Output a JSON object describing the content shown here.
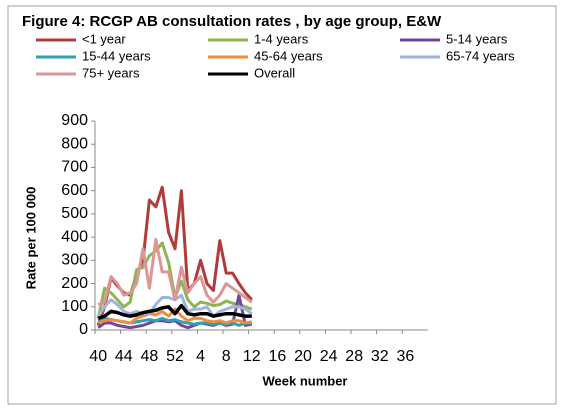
{
  "chart_data": {
    "type": "line",
    "title": "Figure 4: RCGP AB consultation rates , by age group, E&W",
    "x_label": "Week number",
    "y_label": "Rate per 100 000",
    "categories": [
      "40",
      null,
      null,
      null,
      "44",
      null,
      null,
      null,
      "48",
      null,
      null,
      null,
      "52",
      null,
      null,
      null,
      "4",
      null,
      null,
      null,
      "8",
      null,
      null,
      null,
      "12",
      null,
      null,
      null,
      "16",
      null,
      null,
      null,
      "20",
      null,
      null,
      null,
      "24",
      null,
      null,
      null,
      "28",
      null,
      null,
      null,
      "32",
      null,
      null,
      null,
      "36",
      null,
      null,
      null
    ],
    "ylim": [
      0,
      900
    ],
    "yticks": [
      0,
      100,
      200,
      300,
      400,
      500,
      600,
      700,
      800,
      900
    ],
    "grid": false,
    "legend": "top",
    "series": [
      {
        "name": "<1 year",
        "color": "#b03c3a",
        "values": [
          20,
          100,
          225,
          190,
          160,
          150,
          240,
          300,
          560,
          530,
          615,
          420,
          350,
          600,
          170,
          200,
          300,
          200,
          170,
          385,
          245,
          245,
          200,
          160,
          130,
          null,
          null,
          null,
          null,
          null,
          null,
          null,
          null,
          null,
          null,
          null,
          null,
          null,
          null,
          null,
          null,
          null,
          null,
          null,
          null,
          null,
          null,
          null,
          null,
          null,
          null,
          null
        ]
      },
      {
        "name": "1-4 years",
        "color": "#8db552",
        "values": [
          50,
          180,
          160,
          130,
          100,
          120,
          260,
          270,
          320,
          340,
          375,
          290,
          140,
          210,
          130,
          100,
          120,
          115,
          105,
          110,
          125,
          115,
          110,
          100,
          90,
          null,
          null,
          null,
          null,
          null,
          null,
          null,
          null,
          null,
          null,
          null,
          null,
          null,
          null,
          null,
          null,
          null,
          null,
          null,
          null,
          null,
          null,
          null,
          null,
          null,
          null,
          null
        ]
      },
      {
        "name": "5-14 years",
        "color": "#70489a",
        "values": [
          10,
          30,
          30,
          20,
          15,
          10,
          15,
          20,
          30,
          40,
          40,
          35,
          40,
          20,
          10,
          20,
          30,
          25,
          20,
          30,
          20,
          25,
          150,
          20,
          25,
          null,
          null,
          null,
          null,
          null,
          null,
          null,
          null,
          null,
          null,
          null,
          null,
          null,
          null,
          null,
          null,
          null,
          null,
          null,
          null,
          null,
          null,
          null,
          null,
          null,
          null,
          null
        ]
      },
      {
        "name": "15-44 years",
        "color": "#2f9fb5",
        "values": [
          40,
          50,
          45,
          40,
          35,
          30,
          35,
          40,
          45,
          40,
          50,
          40,
          45,
          35,
          30,
          25,
          30,
          30,
          25,
          30,
          25,
          30,
          20,
          30,
          30,
          null,
          null,
          null,
          null,
          null,
          null,
          null,
          null,
          null,
          null,
          null,
          null,
          null,
          null,
          null,
          null,
          null,
          null,
          null,
          null,
          null,
          null,
          null,
          null,
          null,
          null,
          null
        ]
      },
      {
        "name": "45-64 years",
        "color": "#f08c3a",
        "values": [
          30,
          40,
          45,
          40,
          35,
          30,
          50,
          60,
          70,
          65,
          80,
          60,
          90,
          60,
          40,
          50,
          50,
          40,
          35,
          40,
          30,
          40,
          40,
          30,
          35,
          null,
          null,
          null,
          null,
          null,
          null,
          null,
          null,
          null,
          null,
          null,
          null,
          null,
          null,
          null,
          null,
          null,
          null,
          null,
          null,
          null,
          null,
          null,
          null,
          null,
          null,
          null
        ]
      },
      {
        "name": "65-74 years",
        "color": "#9fb3dc",
        "values": [
          60,
          100,
          130,
          110,
          80,
          70,
          80,
          70,
          70,
          110,
          140,
          140,
          130,
          150,
          80,
          90,
          90,
          100,
          60,
          80,
          90,
          100,
          100,
          90,
          70,
          null,
          null,
          null,
          null,
          null,
          null,
          null,
          null,
          null,
          null,
          null,
          null,
          null,
          null,
          null,
          null,
          null,
          null,
          null,
          null,
          null,
          null,
          null,
          null,
          null,
          null,
          null
        ]
      },
      {
        "name": "75+ years",
        "color": "#dc9694",
        "values": [
          110,
          120,
          230,
          200,
          150,
          160,
          200,
          350,
          180,
          390,
          250,
          250,
          130,
          270,
          160,
          200,
          230,
          150,
          120,
          150,
          200,
          180,
          160,
          140,
          120,
          null,
          null,
          null,
          null,
          null,
          null,
          null,
          null,
          null,
          null,
          null,
          null,
          null,
          null,
          null,
          null,
          null,
          null,
          null,
          null,
          null,
          null,
          null,
          null,
          null,
          null,
          null
        ]
      },
      {
        "name": "Overall",
        "color": "#000000",
        "values": [
          50,
          60,
          80,
          75,
          65,
          60,
          65,
          75,
          80,
          85,
          95,
          100,
          70,
          105,
          70,
          65,
          70,
          70,
          60,
          65,
          70,
          70,
          65,
          60,
          60,
          null,
          null,
          null,
          null,
          null,
          null,
          null,
          null,
          null,
          null,
          null,
          null,
          null,
          null,
          null,
          null,
          null,
          null,
          null,
          null,
          null,
          null,
          null,
          null,
          null,
          null,
          null
        ]
      }
    ]
  }
}
